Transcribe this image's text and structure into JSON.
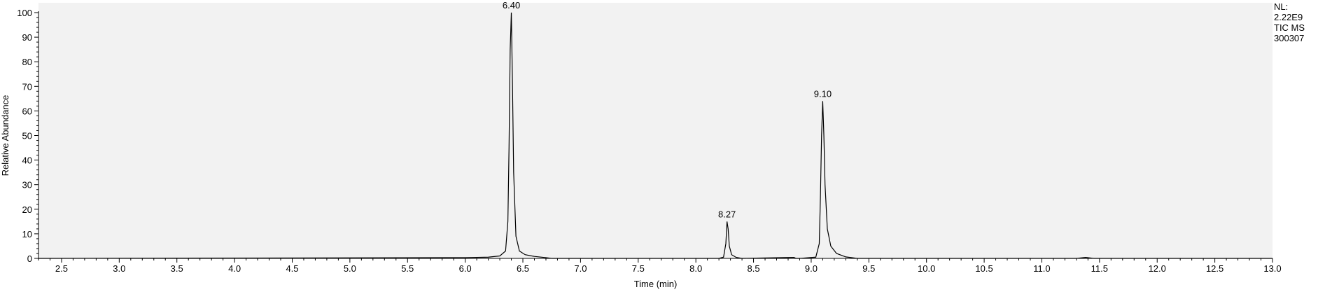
{
  "chart_data": {
    "type": "line",
    "xlabel": "Time (min)",
    "ylabel": "Relative Abundance",
    "xlim": [
      2.3,
      13.0
    ],
    "ylim": [
      0,
      100
    ],
    "x_ticks": [
      "2.5",
      "3.0",
      "3.5",
      "4.0",
      "4.5",
      "5.0",
      "5.5",
      "6.0",
      "6.5",
      "7.0",
      "7.5",
      "8.0",
      "8.5",
      "9.0",
      "9.5",
      "10.0",
      "10.5",
      "11.0",
      "11.5",
      "12.0",
      "12.5",
      "13.0"
    ],
    "y_ticks": [
      "0",
      "10",
      "20",
      "30",
      "40",
      "50",
      "60",
      "70",
      "80",
      "90",
      "100"
    ],
    "background_color": "#f2f2f2",
    "line_color": "#000000",
    "peaks": [
      {
        "time": 6.4,
        "label": "6.40",
        "abundance": 100
      },
      {
        "time": 8.27,
        "label": "8.27",
        "abundance": 15
      },
      {
        "time": 9.1,
        "label": "9.10",
        "abundance": 64
      }
    ],
    "series": [
      {
        "x": [
          2.3,
          6.0,
          6.2,
          6.3,
          6.35,
          6.37,
          6.38,
          6.39,
          6.4,
          6.41,
          6.42,
          6.44,
          6.47,
          6.52,
          6.6,
          6.7,
          6.75,
          8.2,
          8.24,
          8.26,
          8.27,
          8.28,
          8.29,
          8.31,
          8.35,
          8.4,
          8.85,
          8.87,
          8.9,
          9.04,
          9.07,
          9.08,
          9.09,
          9.1,
          9.11,
          9.12,
          9.14,
          9.17,
          9.22,
          9.3,
          9.4,
          11.3,
          11.38,
          11.45,
          13.0
        ],
        "y": [
          0,
          0.3,
          0.5,
          1.0,
          3,
          15,
          45,
          85,
          100,
          70,
          35,
          9,
          3,
          1.5,
          0.8,
          0.3,
          0,
          0,
          0.5,
          6,
          15,
          12,
          5,
          1.5,
          0.4,
          0,
          0.4,
          0,
          0,
          0.5,
          6,
          25,
          50,
          64,
          50,
          30,
          12,
          5,
          2,
          0.6,
          0,
          0,
          0.4,
          0,
          0
        ]
      }
    ]
  },
  "info_box": {
    "lines": [
      "NL:",
      "2.22E9",
      "TIC  MS",
      "300307"
    ]
  }
}
